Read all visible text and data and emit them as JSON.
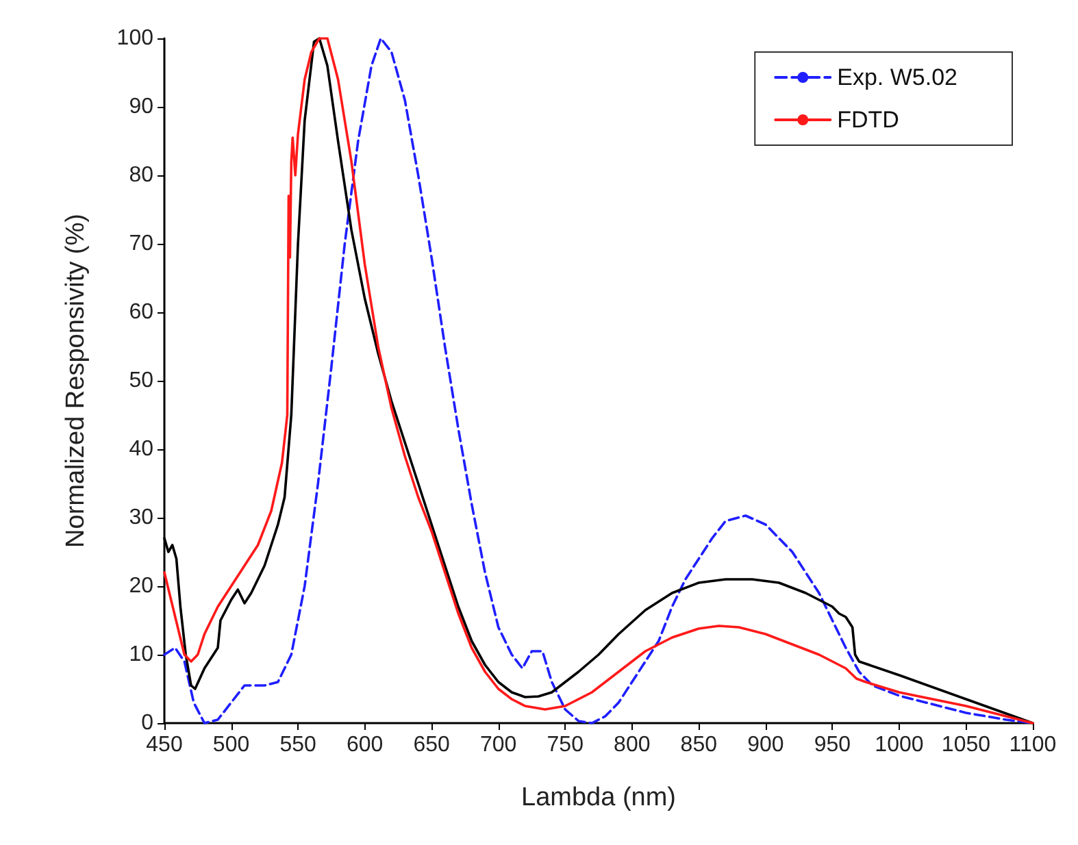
{
  "chart_data": {
    "type": "line",
    "xlabel": "Lambda (nm)",
    "ylabel": "Normalized Responsivity (%)",
    "xlim": [
      450,
      1100
    ],
    "ylim": [
      0,
      100
    ],
    "xticks": [
      450,
      500,
      550,
      600,
      650,
      700,
      750,
      800,
      850,
      900,
      950,
      1000,
      1050,
      1100
    ],
    "yticks": [
      0,
      10,
      20,
      30,
      40,
      50,
      60,
      70,
      80,
      90,
      100
    ],
    "grid": false,
    "legend": "top right",
    "marker": "none",
    "series": [
      {
        "name": "Exp. W5.02",
        "color": "#1f1fff",
        "line_style": "dashed",
        "x": [
          450,
          458,
          465,
          472,
          480,
          490,
          500,
          510,
          525,
          535,
          545,
          555,
          565,
          575,
          585,
          595,
          605,
          612,
          620,
          630,
          640,
          650,
          660,
          670,
          680,
          690,
          700,
          710,
          718,
          725,
          733,
          740,
          750,
          760,
          770,
          780,
          790,
          800,
          810,
          820,
          830,
          840,
          850,
          860,
          870,
          885,
          900,
          910,
          920,
          930,
          940,
          950,
          960,
          970,
          980,
          1000,
          1020,
          1050,
          1080,
          1100
        ],
        "values": [
          10,
          11,
          9,
          3,
          0,
          0.5,
          3,
          5.5,
          5.5,
          6,
          10,
          20,
          35,
          52,
          70,
          85,
          96,
          100,
          98,
          91,
          80,
          68,
          55,
          43,
          32,
          22,
          14,
          10,
          8,
          10.5,
          10.5,
          6,
          2,
          0.3,
          0,
          1,
          3,
          6,
          9,
          12,
          17,
          21,
          24,
          27,
          29.5,
          30.3,
          29,
          27,
          25,
          22,
          19,
          15,
          11,
          7.5,
          5.5,
          4,
          3,
          1.5,
          0.5,
          0
        ]
      },
      {
        "color": "#000000",
        "line_style": "solid",
        "x": [
          450,
          453,
          456,
          459,
          462,
          466,
          470,
          473,
          480,
          490,
          492,
          500,
          505,
          510,
          515,
          525,
          535,
          540,
          545,
          550,
          555,
          562,
          566,
          572,
          580,
          590,
          600,
          610,
          620,
          630,
          640,
          650,
          660,
          670,
          680,
          690,
          700,
          710,
          720,
          730,
          740,
          750,
          760,
          775,
          790,
          810,
          830,
          850,
          870,
          890,
          910,
          930,
          950,
          955,
          960,
          965,
          967,
          970,
          1000,
          1050,
          1100
        ],
        "values": [
          27,
          25,
          26,
          24,
          17,
          10,
          5.5,
          5,
          8,
          11,
          15,
          18,
          19.5,
          17.5,
          19,
          23,
          29,
          33,
          45,
          70,
          88,
          99.5,
          100,
          96,
          85,
          72,
          62,
          54,
          47,
          41,
          35,
          29,
          23,
          17,
          12,
          8.5,
          6,
          4.5,
          3.8,
          3.9,
          4.5,
          6,
          7.5,
          10,
          13,
          16.5,
          19,
          20.5,
          21,
          21,
          20.5,
          19,
          17,
          16,
          15.5,
          14,
          10,
          9,
          7,
          3.5,
          0
        ]
      },
      {
        "name": "FDTD",
        "color": "#ff1a1a",
        "line_style": "solid",
        "x": [
          450,
          455,
          460,
          465,
          470,
          475,
          480,
          490,
          500,
          510,
          520,
          530,
          538,
          542,
          543,
          544,
          545,
          546,
          548,
          550,
          555,
          560,
          566,
          572,
          580,
          590,
          600,
          610,
          620,
          630,
          640,
          650,
          660,
          670,
          680,
          690,
          700,
          710,
          720,
          735,
          750,
          770,
          790,
          810,
          830,
          850,
          865,
          880,
          900,
          920,
          940,
          960,
          968,
          975,
          1000,
          1050,
          1100
        ],
        "values": [
          22,
          18,
          14,
          10,
          9,
          10,
          13,
          17,
          20,
          23,
          26,
          31,
          38,
          45,
          77,
          68,
          82,
          85.5,
          80,
          86,
          94,
          98,
          100,
          100,
          94,
          82,
          67,
          55,
          46,
          39,
          33,
          28,
          22,
          16,
          11,
          7.5,
          5,
          3.5,
          2.5,
          2,
          2.5,
          4.5,
          7.5,
          10.5,
          12.5,
          13.8,
          14.2,
          14,
          13,
          11.5,
          10,
          8,
          6.5,
          6,
          4.5,
          2.5,
          0
        ]
      }
    ]
  }
}
